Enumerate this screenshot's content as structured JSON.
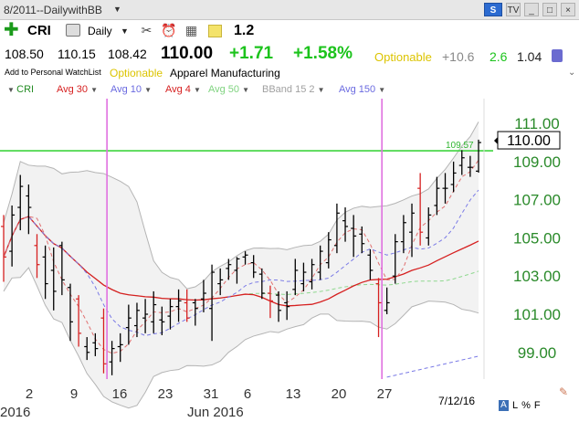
{
  "window": {
    "title": "8/2011--DailywithBB",
    "buttons": [
      "S",
      "TV",
      "_",
      "□",
      "×"
    ]
  },
  "toolbar": {
    "symbol": "CRI",
    "period": "Daily",
    "score": "1.2",
    "icons": [
      "add-icon",
      "print-icon",
      "tools-icon",
      "alarm-icon",
      "calendar-icon",
      "note-icon"
    ]
  },
  "quote": {
    "open": "108.50",
    "high": "110.15",
    "low": "108.42",
    "last": "110.00",
    "change": "+1.71",
    "change_pct": "+1.58%",
    "optionable": "Optionable",
    "stat1": "+10.6",
    "stat2": "2.6",
    "stat3": "1.04"
  },
  "subline": {
    "watchlist": "Add to Personal WatchList",
    "optionable": "Optionable",
    "industry": "Apparel Manufacturing"
  },
  "legend": [
    {
      "label": "CRI",
      "color": "#228b22"
    },
    {
      "label": "Avg 30",
      "color": "#d62020"
    },
    {
      "label": "Avg 10",
      "color": "#6a6ae0"
    },
    {
      "label": "Avg 4",
      "color": "#d62020"
    },
    {
      "label": "Avg 50",
      "color": "#7fd37f"
    },
    {
      "label": "BBand 15 2",
      "color": "#a0a0a0"
    },
    {
      "label": "Avg 150",
      "color": "#6a6ae0"
    }
  ],
  "date_label": "7/12/16",
  "bottom_flags": [
    "A",
    "L",
    "%",
    "F"
  ],
  "chart_data": {
    "type": "ohlc",
    "price_axis": {
      "ticks": [
        "111.00",
        "109.00",
        "107.00",
        "105.00",
        "103.00",
        "101.00",
        "99.00"
      ],
      "range": [
        97.6,
        112.3
      ]
    },
    "current_price_label": "110.00",
    "breakout_line": {
      "value": 109.57,
      "label": "109.57",
      "color": "#3fd43f"
    },
    "x_labels": [
      "2",
      "9",
      "16",
      "23",
      "31",
      "6",
      "13",
      "20",
      "27"
    ],
    "month_labels": [
      "2016",
      "Jun 2016"
    ],
    "vertical_markers": {
      "color": "#e070e0"
    },
    "bars": [
      {
        "o": 105.6,
        "h": 106.2,
        "l": 102.7,
        "c": 104.0,
        "color": "#d62020"
      },
      {
        "o": 104.3,
        "h": 106.7,
        "l": 103.5,
        "c": 106.2,
        "color": "#000"
      },
      {
        "o": 106.6,
        "h": 108.3,
        "l": 105.4,
        "c": 107.7,
        "color": "#000"
      },
      {
        "o": 107.2,
        "h": 107.8,
        "l": 105.2,
        "c": 106.6,
        "color": "#000"
      },
      {
        "o": 104.6,
        "h": 105.2,
        "l": 102.9,
        "c": 103.6,
        "color": "#d62020"
      },
      {
        "o": 104.0,
        "h": 104.6,
        "l": 101.8,
        "c": 102.6,
        "color": "#000"
      },
      {
        "o": 103.3,
        "h": 104.5,
        "l": 101.2,
        "c": 102.2,
        "color": "#000"
      },
      {
        "o": 104.6,
        "h": 104.8,
        "l": 102.0,
        "c": 102.8,
        "color": "#000"
      },
      {
        "o": 102.4,
        "h": 102.6,
        "l": 99.6,
        "c": 100.6,
        "color": "#000"
      },
      {
        "o": 101.8,
        "h": 102.0,
        "l": 99.3,
        "c": 100.0,
        "color": "#d62020"
      },
      {
        "o": 99.3,
        "h": 99.8,
        "l": 98.6,
        "c": 99.0,
        "color": "#000"
      },
      {
        "o": 99.5,
        "h": 100.0,
        "l": 98.8,
        "c": 99.2,
        "color": "#000"
      },
      {
        "o": 100.8,
        "h": 101.3,
        "l": 97.9,
        "c": 98.4,
        "color": "#d62020"
      },
      {
        "o": 98.5,
        "h": 99.6,
        "l": 97.8,
        "c": 99.2,
        "color": "#000"
      },
      {
        "o": 99.3,
        "h": 100.0,
        "l": 98.5,
        "c": 99.4,
        "color": "#000"
      },
      {
        "o": 100.3,
        "h": 101.5,
        "l": 99.4,
        "c": 100.8,
        "color": "#000"
      },
      {
        "o": 100.4,
        "h": 101.6,
        "l": 99.8,
        "c": 101.2,
        "color": "#000"
      },
      {
        "o": 100.8,
        "h": 101.8,
        "l": 100.0,
        "c": 101.0,
        "color": "#000"
      },
      {
        "o": 100.6,
        "h": 102.2,
        "l": 100.0,
        "c": 101.5,
        "color": "#000"
      },
      {
        "o": 100.7,
        "h": 101.4,
        "l": 99.9,
        "c": 100.6,
        "color": "#000"
      },
      {
        "o": 100.9,
        "h": 101.8,
        "l": 100.2,
        "c": 101.4,
        "color": "#000"
      },
      {
        "o": 101.4,
        "h": 102.3,
        "l": 100.6,
        "c": 101.7,
        "color": "#000"
      },
      {
        "o": 101.6,
        "h": 102.3,
        "l": 100.6,
        "c": 100.8,
        "color": "#d62020"
      },
      {
        "o": 101.6,
        "h": 101.8,
        "l": 100.4,
        "c": 101.3,
        "color": "#000"
      },
      {
        "o": 101.8,
        "h": 102.8,
        "l": 101.1,
        "c": 102.1,
        "color": "#000"
      },
      {
        "o": 101.3,
        "h": 103.6,
        "l": 99.6,
        "c": 103.2,
        "color": "#000"
      },
      {
        "o": 102.6,
        "h": 103.4,
        "l": 102.0,
        "c": 102.8,
        "color": "#000"
      },
      {
        "o": 103.4,
        "h": 103.9,
        "l": 102.8,
        "c": 103.6,
        "color": "#000"
      },
      {
        "o": 103.3,
        "h": 104.0,
        "l": 102.6,
        "c": 103.9,
        "color": "#000"
      },
      {
        "o": 104.0,
        "h": 104.3,
        "l": 103.6,
        "c": 104.1,
        "color": "#000"
      },
      {
        "o": 103.7,
        "h": 104.1,
        "l": 102.9,
        "c": 103.2,
        "color": "#000"
      },
      {
        "o": 103.1,
        "h": 103.4,
        "l": 101.8,
        "c": 102.1,
        "color": "#000"
      },
      {
        "o": 102.1,
        "h": 102.5,
        "l": 100.8,
        "c": 101.7,
        "color": "#d62020"
      },
      {
        "o": 102.0,
        "h": 102.2,
        "l": 100.6,
        "c": 101.2,
        "color": "#000"
      },
      {
        "o": 101.6,
        "h": 102.2,
        "l": 100.7,
        "c": 101.4,
        "color": "#000"
      },
      {
        "o": 102.3,
        "h": 103.9,
        "l": 102.0,
        "c": 103.3,
        "color": "#000"
      },
      {
        "o": 102.6,
        "h": 103.7,
        "l": 102.2,
        "c": 103.2,
        "color": "#000"
      },
      {
        "o": 102.7,
        "h": 103.9,
        "l": 102.3,
        "c": 103.6,
        "color": "#000"
      },
      {
        "o": 103.2,
        "h": 104.6,
        "l": 102.8,
        "c": 104.3,
        "color": "#000"
      },
      {
        "o": 103.7,
        "h": 105.3,
        "l": 103.4,
        "c": 104.9,
        "color": "#000"
      },
      {
        "o": 104.6,
        "h": 106.8,
        "l": 104.2,
        "c": 106.3,
        "color": "#000"
      },
      {
        "o": 105.9,
        "h": 106.6,
        "l": 104.8,
        "c": 105.6,
        "color": "#000"
      },
      {
        "o": 105.5,
        "h": 106.2,
        "l": 104.0,
        "c": 105.1,
        "color": "#000"
      },
      {
        "o": 105.2,
        "h": 105.6,
        "l": 104.2,
        "c": 104.7,
        "color": "#000"
      },
      {
        "o": 104.1,
        "h": 104.4,
        "l": 102.8,
        "c": 103.3,
        "color": "#000"
      },
      {
        "o": 102.6,
        "h": 102.9,
        "l": 99.8,
        "c": 101.6,
        "color": "#d62020"
      },
      {
        "o": 101.2,
        "h": 102.4,
        "l": 101.0,
        "c": 101.6,
        "color": "#000"
      },
      {
        "o": 103.0,
        "h": 105.2,
        "l": 102.6,
        "c": 104.8,
        "color": "#000"
      },
      {
        "o": 104.8,
        "h": 106.2,
        "l": 104.2,
        "c": 105.8,
        "color": "#000"
      },
      {
        "o": 105.3,
        "h": 106.8,
        "l": 104.0,
        "c": 106.3,
        "color": "#000"
      },
      {
        "o": 107.6,
        "h": 108.4,
        "l": 104.6,
        "c": 105.3,
        "color": "#d62020"
      },
      {
        "o": 105.0,
        "h": 106.6,
        "l": 104.6,
        "c": 106.2,
        "color": "#000"
      },
      {
        "o": 106.7,
        "h": 108.2,
        "l": 106.2,
        "c": 107.6,
        "color": "#000"
      },
      {
        "o": 107.6,
        "h": 108.4,
        "l": 106.8,
        "c": 107.6,
        "color": "#000"
      },
      {
        "o": 107.8,
        "h": 109.0,
        "l": 107.4,
        "c": 108.4,
        "color": "#000"
      },
      {
        "o": 108.8,
        "h": 109.6,
        "l": 108.3,
        "c": 109.2,
        "color": "#000"
      },
      {
        "o": 108.7,
        "h": 109.3,
        "l": 108.2,
        "c": 108.7,
        "color": "#000"
      },
      {
        "o": 108.5,
        "h": 110.15,
        "l": 108.42,
        "c": 110.0,
        "color": "#000"
      }
    ]
  }
}
